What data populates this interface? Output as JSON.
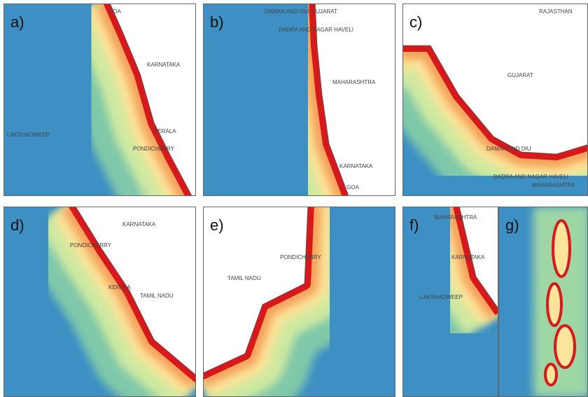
{
  "panels": [
    {
      "label": "a)",
      "places": [
        "GOA",
        "KARNATAKA",
        "LAKSHADWEEP",
        "KERALA",
        "PONDICHERRY"
      ]
    },
    {
      "label": "b)",
      "places": [
        "DAMAN AND DIU",
        "GUJARAT",
        "DADRA AND NAGAR HAVELI",
        "MAHARASHTRA",
        "KARNATAKA",
        "GOA"
      ]
    },
    {
      "label": "c)",
      "places": [
        "RAJASTHAN",
        "GUJARAT",
        "DAMAN AND DIU",
        "DADRA AND NAGAR HAVELI",
        "MAHARASHTRA"
      ]
    },
    {
      "label": "d)",
      "places": [
        "KARNATAKA",
        "PONDICHERRY",
        "KERALA",
        "TAMIL NADU"
      ]
    },
    {
      "label": "e)",
      "places": [
        "PONDICHERRY",
        "TAMIL NADU"
      ]
    },
    {
      "label": "f)",
      "places": [
        "MAHARASHTRA",
        "KARNATAKA",
        "LAKSHADWEEP"
      ]
    },
    {
      "label": "g)"
    }
  ]
}
